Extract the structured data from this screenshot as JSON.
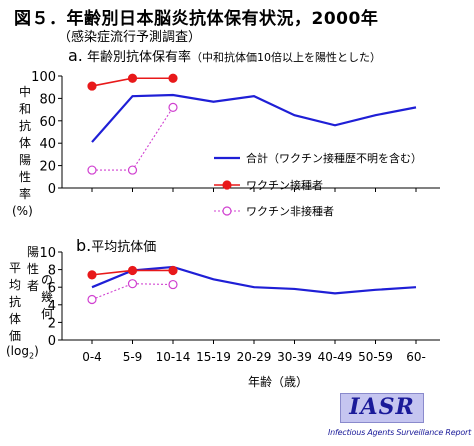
{
  "figure": {
    "title": "図５．年齢別日本脳炎抗体保有状況，2000年",
    "subtitle": "（感染症流行予測調査）",
    "x_axis_label": "年齢（歳）",
    "logo_text": "IASR",
    "logo_subtext": "Infectious Agents Surveillance Report"
  },
  "colors": {
    "total": "#1f1fd6",
    "vaccinated": "#e8191a",
    "unvaccinated": "#d040d0"
  },
  "chart_data": [
    {
      "type": "line",
      "panel_letter": "a.",
      "title": "年齢別抗体保有率",
      "title_note": "（中和抗体価10倍以上を陽性とした）",
      "ylabel": "中和抗体陽性率",
      "ylabel_unit": "(%)",
      "ylim": [
        0,
        100
      ],
      "yticks": [
        0,
        20,
        40,
        60,
        80,
        100
      ],
      "categories": [
        "0-4",
        "5-9",
        "10-14",
        "15-19",
        "20-29",
        "30-39",
        "40-49",
        "50-59",
        "60-"
      ],
      "legend_position": "center-right",
      "series": [
        {
          "name": "合計（ワクチン接種歴不明を含む）",
          "key": "total",
          "values": [
            41,
            82,
            83,
            77,
            82,
            65,
            56,
            65,
            72
          ]
        },
        {
          "name": "ワクチン接種者",
          "key": "vaccinated",
          "values": [
            91,
            98,
            98,
            null,
            null,
            null,
            null,
            null,
            null
          ]
        },
        {
          "name": "ワクチン非接種者",
          "key": "unvaccinated",
          "values": [
            16,
            16,
            72,
            null,
            null,
            null,
            null,
            null,
            null
          ]
        }
      ]
    },
    {
      "type": "line",
      "panel_letter": "b.",
      "title": "平均抗体価",
      "ylabel": "平均抗体価",
      "ylabel_note": "陽性者の幾何",
      "ylabel_unit_base": "(log",
      "ylabel_unit_sub": "2",
      "ylabel_unit_end": ")",
      "ylim": [
        0,
        10
      ],
      "yticks": [
        0,
        2,
        4,
        6,
        8,
        10
      ],
      "categories": [
        "0-4",
        "5-9",
        "10-14",
        "15-19",
        "20-29",
        "30-39",
        "40-49",
        "50-59",
        "60-"
      ],
      "series": [
        {
          "key": "total",
          "values": [
            6.0,
            7.9,
            8.3,
            6.9,
            6.0,
            5.8,
            5.3,
            5.7,
            6.0
          ]
        },
        {
          "key": "vaccinated",
          "values": [
            7.4,
            7.9,
            7.9,
            null,
            null,
            null,
            null,
            null,
            null
          ]
        },
        {
          "key": "unvaccinated",
          "values": [
            4.6,
            6.4,
            6.3,
            null,
            null,
            null,
            null,
            null,
            null
          ]
        }
      ]
    }
  ]
}
